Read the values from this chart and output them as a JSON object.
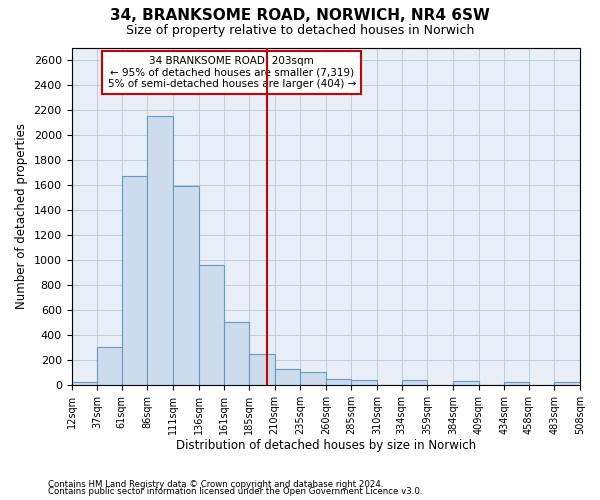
{
  "title1": "34, BRANKSOME ROAD, NORWICH, NR4 6SW",
  "title2": "Size of property relative to detached houses in Norwich",
  "xlabel": "Distribution of detached houses by size in Norwich",
  "ylabel": "Number of detached properties",
  "footnote1": "Contains HM Land Registry data © Crown copyright and database right 2024.",
  "footnote2": "Contains public sector information licensed under the Open Government Licence v3.0.",
  "annotation_title": "34 BRANKSOME ROAD: 203sqm",
  "annotation_line1": "← 95% of detached houses are smaller (7,319)",
  "annotation_line2": "5% of semi-detached houses are larger (404) →",
  "vline_x": 203,
  "bin_edges": [
    12,
    37,
    61,
    86,
    111,
    136,
    161,
    185,
    210,
    235,
    260,
    285,
    310,
    334,
    359,
    384,
    409,
    434,
    458,
    483,
    508
  ],
  "bar_heights": [
    25,
    300,
    1670,
    2150,
    1595,
    960,
    500,
    250,
    125,
    100,
    50,
    35,
    0,
    35,
    0,
    30,
    0,
    25,
    0,
    25
  ],
  "bar_color": "#ccdcec",
  "bar_edge_color": "#6699bb",
  "vline_color": "#cc0000",
  "annotation_box_edgecolor": "#cc0000",
  "grid_color": "#c0ccda",
  "bg_color": "#e8eef6",
  "ylim": [
    0,
    2700
  ],
  "yticks": [
    0,
    200,
    400,
    600,
    800,
    1000,
    1200,
    1400,
    1600,
    1800,
    2000,
    2200,
    2400,
    2600
  ]
}
